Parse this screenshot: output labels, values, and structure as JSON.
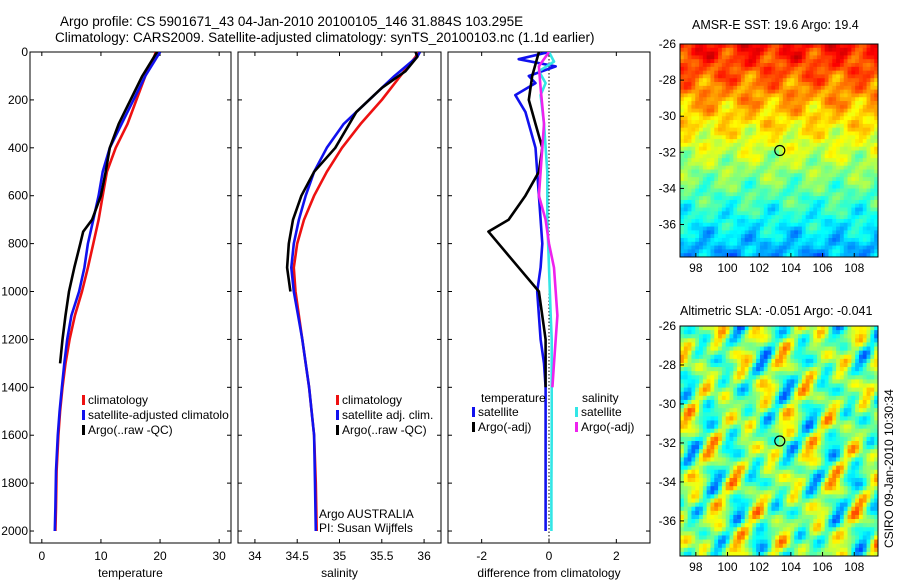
{
  "header": {
    "title_line1": "Argo profile: CS 5901671_43 04-Jan-2010 20100105_146 31.884S 103.295E",
    "title_line2": "Climatology: CARS2009. Satellite-adjusted climatology: synTS_20100103.nc (1.1d earlier)"
  },
  "footer": {
    "credit": "CSIRO 09-Jan-2010 10:30:34"
  },
  "colors": {
    "clim": "#ee1111",
    "sat": "#1111ee",
    "argo": "#000000",
    "sat_sal": "#33e6e6",
    "argo_sal": "#ee22ee"
  },
  "chart_data": [
    {
      "id": "temperature",
      "type": "line",
      "xlabel": "temperature",
      "xlim": [
        -2,
        32
      ],
      "xticks": [
        0,
        10,
        20,
        30
      ],
      "ylim": [
        0,
        2050
      ],
      "yticks": [
        0,
        200,
        400,
        600,
        800,
        1000,
        1200,
        1400,
        1600,
        1800,
        2000
      ],
      "series": [
        {
          "name": "climatology",
          "color": "#ee1111",
          "x": [
            19.3,
            19.0,
            17.5,
            16.0,
            14.5,
            12.5,
            11.0,
            10.3,
            9.6,
            8.7,
            7.8,
            6.8,
            5.6,
            4.7,
            4.0,
            3.5,
            3.1,
            2.8,
            2.5,
            2.4,
            2.3
          ],
          "y": [
            0,
            20,
            100,
            200,
            300,
            400,
            500,
            600,
            700,
            800,
            900,
            1000,
            1100,
            1200,
            1300,
            1400,
            1500,
            1600,
            1750,
            1900,
            2000
          ]
        },
        {
          "name": "satellite-adjusted climatology",
          "color": "#1111ee",
          "x": [
            20.0,
            19.5,
            17.5,
            15.5,
            13.5,
            11.5,
            10.3,
            9.6,
            8.7,
            7.8,
            7.2,
            6.3,
            5.0,
            4.3,
            3.8,
            3.4,
            3.0,
            2.7,
            2.4,
            2.3,
            2.2
          ],
          "y": [
            0,
            20,
            100,
            200,
            300,
            400,
            500,
            600,
            700,
            800,
            900,
            1000,
            1100,
            1200,
            1300,
            1400,
            1500,
            1600,
            1750,
            1900,
            2000
          ]
        },
        {
          "name": "Argo(..raw -QC)",
          "color": "#000000",
          "x": [
            19.5,
            19.0,
            17.0,
            15.0,
            13.0,
            11.5,
            10.8,
            10.0,
            8.5,
            7.0,
            6.5,
            5.5,
            4.6,
            4.0,
            3.5,
            3.1
          ],
          "y": [
            0,
            20,
            100,
            200,
            300,
            400,
            500,
            600,
            700,
            750,
            800,
            900,
            1000,
            1100,
            1200,
            1300
          ]
        }
      ],
      "legend": {
        "position": "lower-right",
        "entries": [
          "climatology",
          "satellite-adjusted climatology",
          "Argo(..raw -QC)"
        ],
        "visible_text": [
          "climatology",
          "satellite-adjusted climatolo",
          "Argo(..raw -QC)"
        ]
      }
    },
    {
      "id": "salinity",
      "type": "line",
      "xlabel": "salinity",
      "xlim": [
        33.8,
        36.2
      ],
      "xticks": [
        34,
        34.5,
        35,
        35.5,
        36
      ],
      "xticklabels": [
        "34",
        "34.5",
        "35",
        "35.5",
        "36"
      ],
      "ylim": [
        0,
        2050
      ],
      "series": [
        {
          "name": "climatology",
          "color": "#ee1111",
          "x": [
            35.93,
            35.9,
            35.72,
            35.5,
            35.25,
            35.03,
            34.85,
            34.7,
            34.58,
            34.5,
            34.46,
            34.48,
            34.52,
            34.56,
            34.6,
            34.64,
            34.67,
            34.7,
            34.72,
            34.73
          ],
          "y": [
            0,
            20,
            100,
            200,
            300,
            400,
            500,
            600,
            700,
            800,
            900,
            1000,
            1100,
            1200,
            1300,
            1400,
            1500,
            1600,
            1800,
            2000
          ]
        },
        {
          "name": "satellite adj. clim.",
          "color": "#1111ee",
          "x": [
            35.95,
            35.92,
            35.65,
            35.35,
            35.05,
            34.85,
            34.7,
            34.6,
            34.52,
            34.46,
            34.43,
            34.46,
            34.51,
            34.56,
            34.6,
            34.64,
            34.67,
            34.7,
            34.71,
            34.72
          ],
          "y": [
            0,
            20,
            100,
            200,
            300,
            400,
            500,
            600,
            700,
            800,
            900,
            1000,
            1100,
            1200,
            1300,
            1400,
            1500,
            1600,
            1800,
            2000
          ]
        },
        {
          "name": "Argo(..raw -QC)",
          "color": "#000000",
          "x": [
            35.9,
            35.92,
            35.78,
            35.5,
            35.2,
            34.95,
            34.7,
            34.55,
            34.45,
            34.4,
            34.38,
            34.42
          ],
          "y": [
            0,
            20,
            80,
            150,
            250,
            400,
            500,
            600,
            700,
            800,
            900,
            1000
          ]
        }
      ],
      "legend": {
        "position": "lower-right",
        "entries": [
          "climatology",
          "satellite adj. clim.",
          "Argo(..raw -QC)"
        ]
      },
      "annotation": [
        "Argo AUSTRALIA",
        "PI: Susan Wijffels"
      ]
    },
    {
      "id": "difference",
      "type": "line",
      "xlabel": "difference from climatology",
      "xlim": [
        -3,
        3
      ],
      "xticks": [
        -2,
        0,
        2
      ],
      "ylim": [
        0,
        2050
      ],
      "zero_line": true,
      "series": [
        {
          "name": "temperature satellite",
          "color": "#1111ee",
          "x": [
            0.0,
            -0.9,
            0.2,
            -0.6,
            -0.4,
            -1.0,
            -0.7,
            -0.4,
            -0.3,
            -0.2,
            -0.25,
            -0.35,
            -0.3,
            -0.25,
            -0.15,
            -0.1,
            -0.1,
            -0.1,
            -0.1,
            -0.1,
            -0.1,
            -0.1
          ],
          "y": [
            0,
            30,
            60,
            100,
            130,
            180,
            250,
            400,
            600,
            800,
            900,
            1000,
            1100,
            1200,
            1300,
            1400,
            1500,
            1600,
            1700,
            1800,
            1900,
            2000
          ]
        },
        {
          "name": "temperature Argo(-adj)",
          "color": "#000000",
          "x": [
            -0.3,
            -0.5,
            -0.6,
            -0.4,
            -0.2,
            -0.3,
            -0.7,
            -1.2,
            -1.8,
            -1.5,
            -0.9,
            -0.3,
            -0.1,
            -0.1
          ],
          "y": [
            0,
            100,
            200,
            300,
            400,
            500,
            600,
            700,
            750,
            800,
            900,
            1000,
            1200,
            1400
          ]
        },
        {
          "name": "salinity satellite",
          "color": "#33e6e6",
          "x": [
            0.0,
            0.15,
            -0.3,
            -0.1,
            -0.25,
            -0.15,
            -0.05,
            -0.05,
            0.0,
            0.05,
            0.08,
            0.08,
            0.08,
            0.08,
            0.07,
            0.07,
            0.07
          ],
          "y": [
            0,
            40,
            80,
            130,
            180,
            300,
            500,
            700,
            900,
            1100,
            1200,
            1400,
            1500,
            1600,
            1800,
            1900,
            2000
          ]
        },
        {
          "name": "salinity Argo(-adj)",
          "color": "#ee22ee",
          "x": [
            0.0,
            -0.3,
            -0.25,
            -0.15,
            -0.25,
            -0.3,
            -0.1,
            0.0,
            0.15,
            0.2,
            0.25,
            0.2,
            0.15,
            0.1
          ],
          "y": [
            0,
            60,
            150,
            300,
            500,
            600,
            700,
            800,
            900,
            1000,
            1100,
            1200,
            1300,
            1400
          ]
        }
      ],
      "legend": {
        "position": "lower-center",
        "groups": [
          {
            "title": "temperature",
            "entries": [
              "satellite",
              "Argo(-adj)"
            ]
          },
          {
            "title": "salinity",
            "entries": [
              "satellite",
              "Argo(-adj)"
            ]
          }
        ]
      }
    },
    {
      "id": "sst_map",
      "type": "heatmap",
      "title": "AMSR-E SST: 19.6 Argo: 19.4",
      "xlim": [
        97,
        109.5
      ],
      "ylim": [
        -37.8,
        -26
      ],
      "xticks": [
        98,
        100,
        102,
        104,
        106,
        108
      ],
      "yticks": [
        -26,
        -28,
        -30,
        -32,
        -34,
        -36
      ],
      "marker": {
        "lon": 103.3,
        "lat": -31.9
      }
    },
    {
      "id": "sla_map",
      "type": "heatmap",
      "title": "Altimetric SLA: -0.051 Argo: -0.041",
      "xlim": [
        97,
        109.5
      ],
      "ylim": [
        -37.8,
        -26
      ],
      "xticks": [
        98,
        100,
        102,
        104,
        106,
        108
      ],
      "yticks": [
        -26,
        -28,
        -30,
        -32,
        -34,
        -36
      ],
      "marker": {
        "lon": 103.3,
        "lat": -31.9
      }
    }
  ]
}
